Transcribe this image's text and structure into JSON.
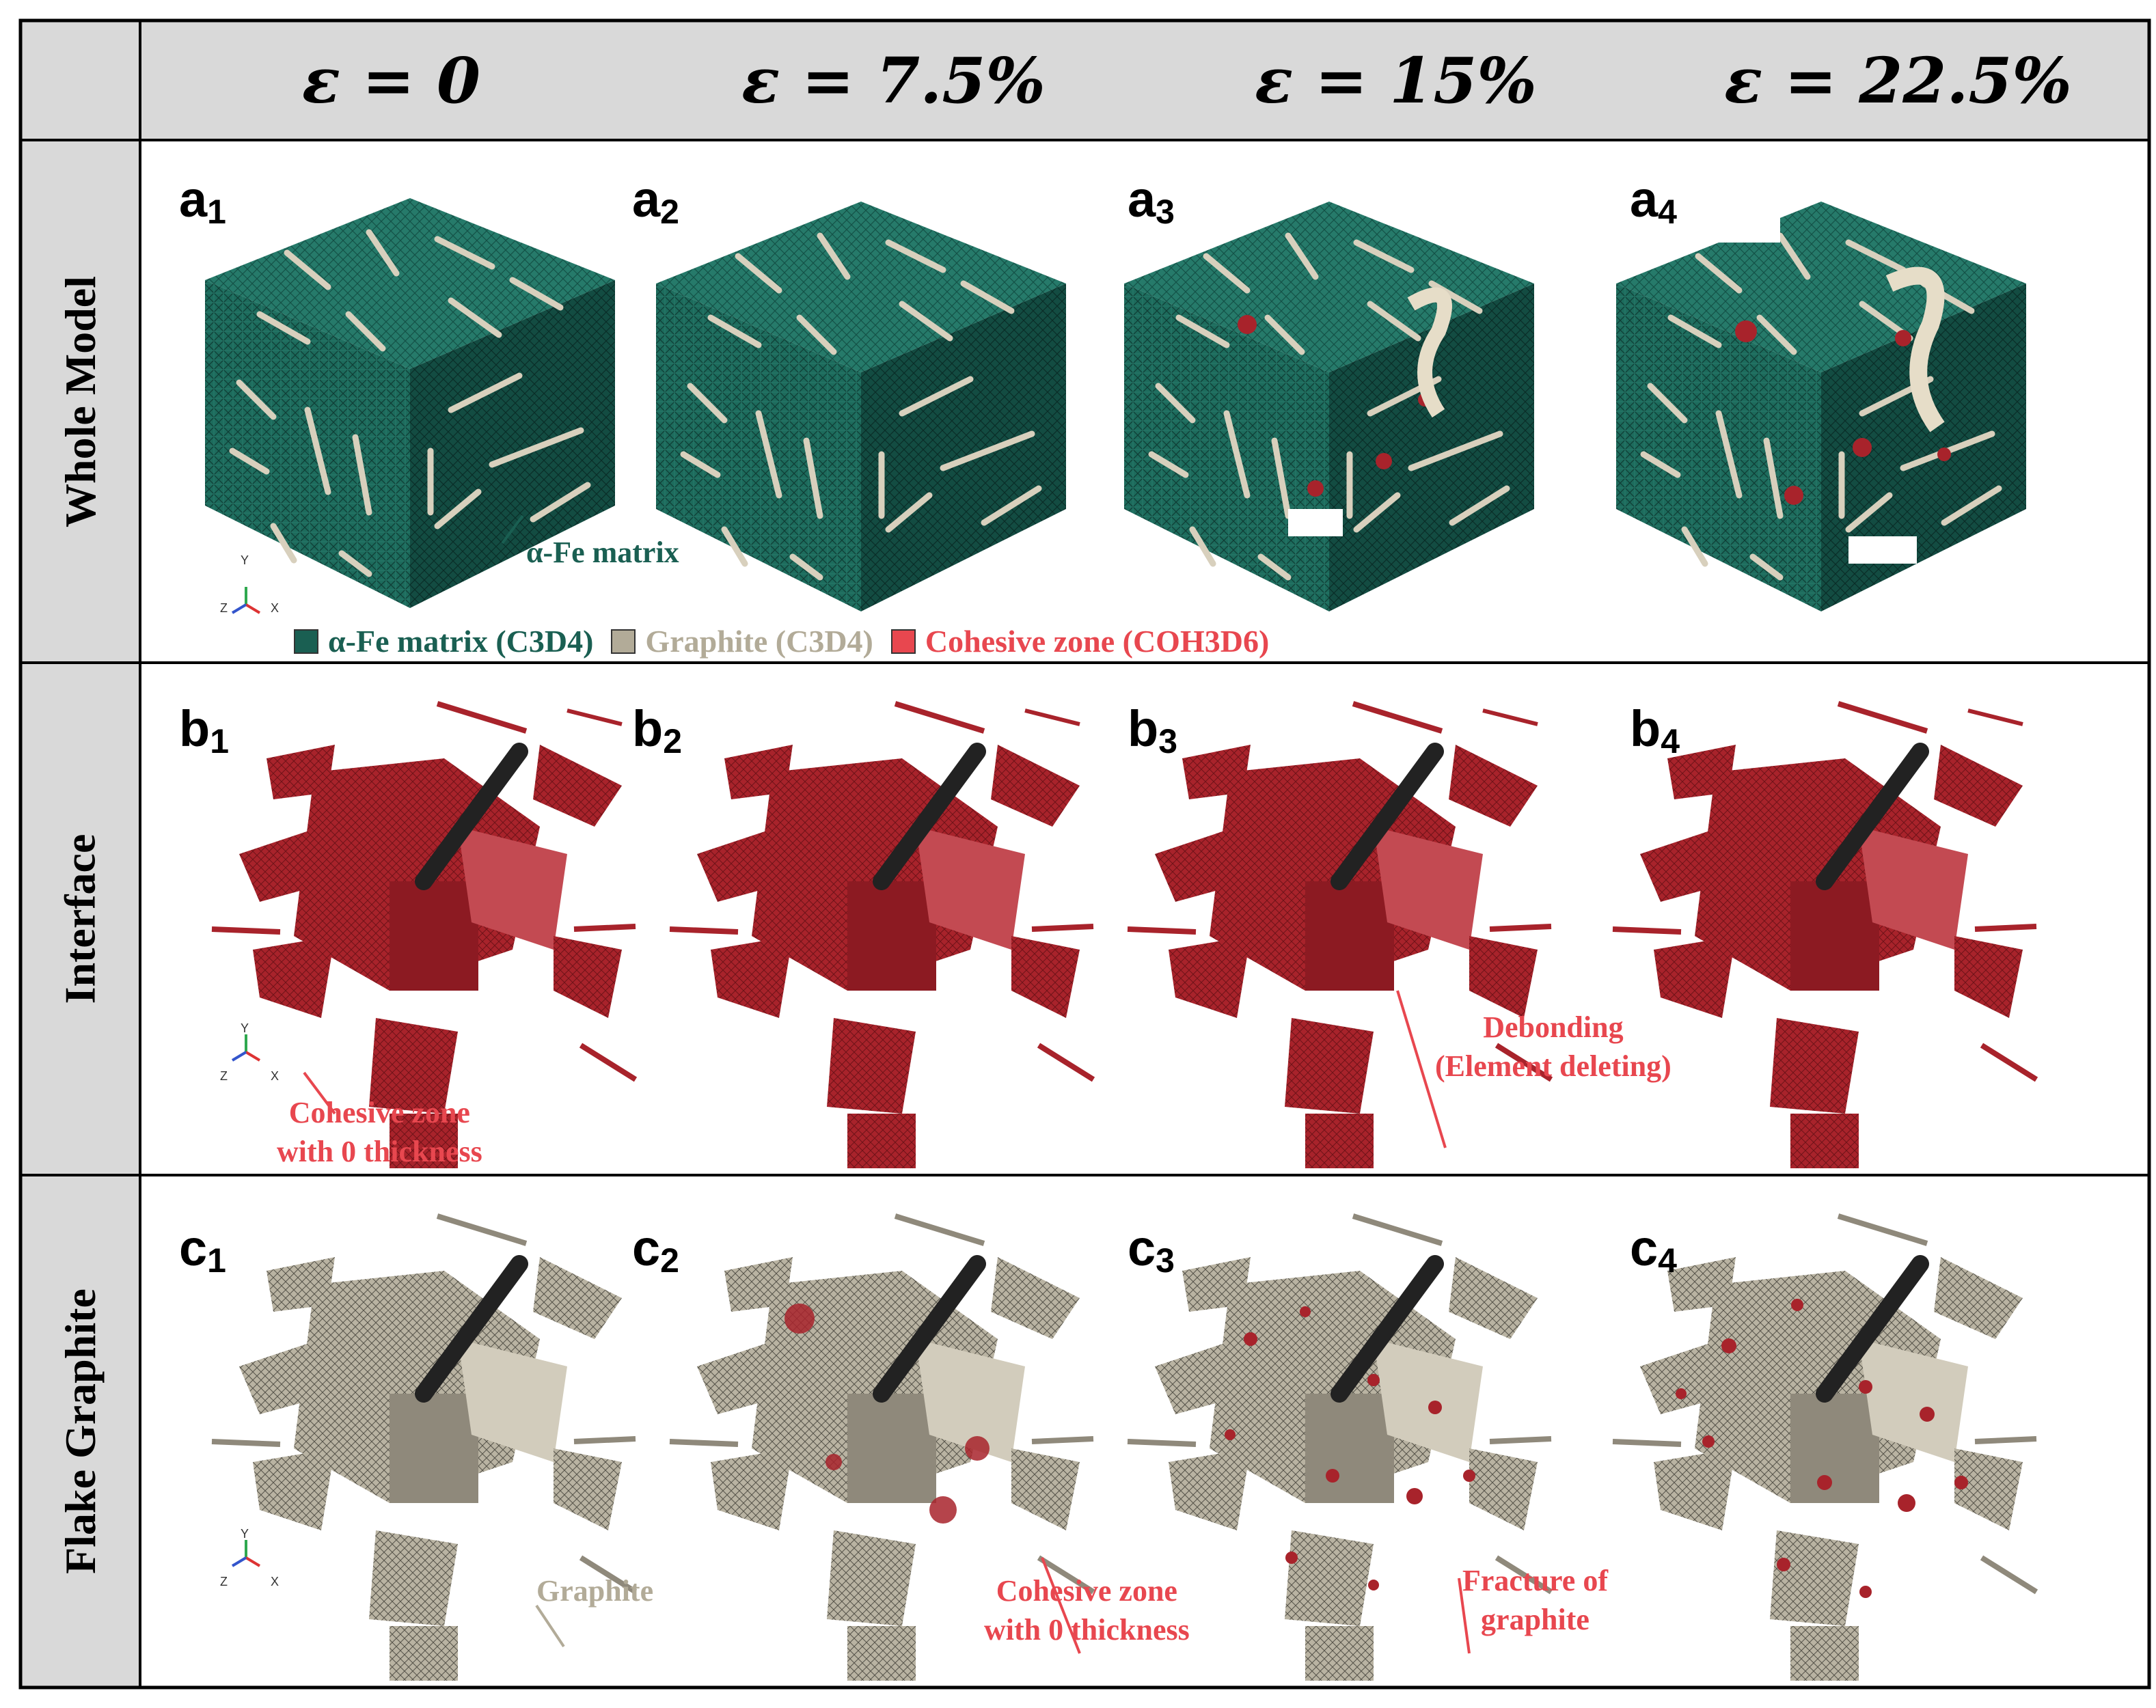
{
  "columns": [
    {
      "label": "ε = 0"
    },
    {
      "label": "ε = 7.5%"
    },
    {
      "label": "ε = 15%"
    },
    {
      "label": "ε = 22.5%"
    }
  ],
  "rows": [
    {
      "label": "Whole Model",
      "panel_letter": "a"
    },
    {
      "label": "Interface",
      "panel_letter": "b"
    },
    {
      "label": "Flake Graphite",
      "panel_letter": "c"
    }
  ],
  "panel_index": [
    "1",
    "2",
    "3",
    "4"
  ],
  "legend": {
    "items": [
      {
        "label": "α-Fe matrix (C3D4)",
        "color": "#1a5f52"
      },
      {
        "label": "Graphite (C3D4)",
        "color": "#b2ab98"
      },
      {
        "label": "Cohesive zone (COH3D6)",
        "color": "#e8474f"
      }
    ]
  },
  "annotations": {
    "matrix": "α-Fe matrix",
    "cohesive_zone_1": "Cohesive zone",
    "cohesive_zone_2": "with 0 thickness",
    "debonding_1": "Debonding",
    "debonding_2": "(Element deleting)",
    "graphite": "Graphite",
    "cz_c2_1": "Cohesive zone",
    "cz_c2_2": "with 0 thickness",
    "fracture_1": "Fracture of",
    "fracture_2": "graphite"
  },
  "axes_triad": {
    "x": "X",
    "y": "Y",
    "z": "Z"
  },
  "colors": {
    "matrix": "#1a5f52",
    "graphite": "#b2ab98",
    "cohesive": "#a8232b",
    "cohesive_light": "#e8474f",
    "header_bg": "#d9d9d9"
  }
}
